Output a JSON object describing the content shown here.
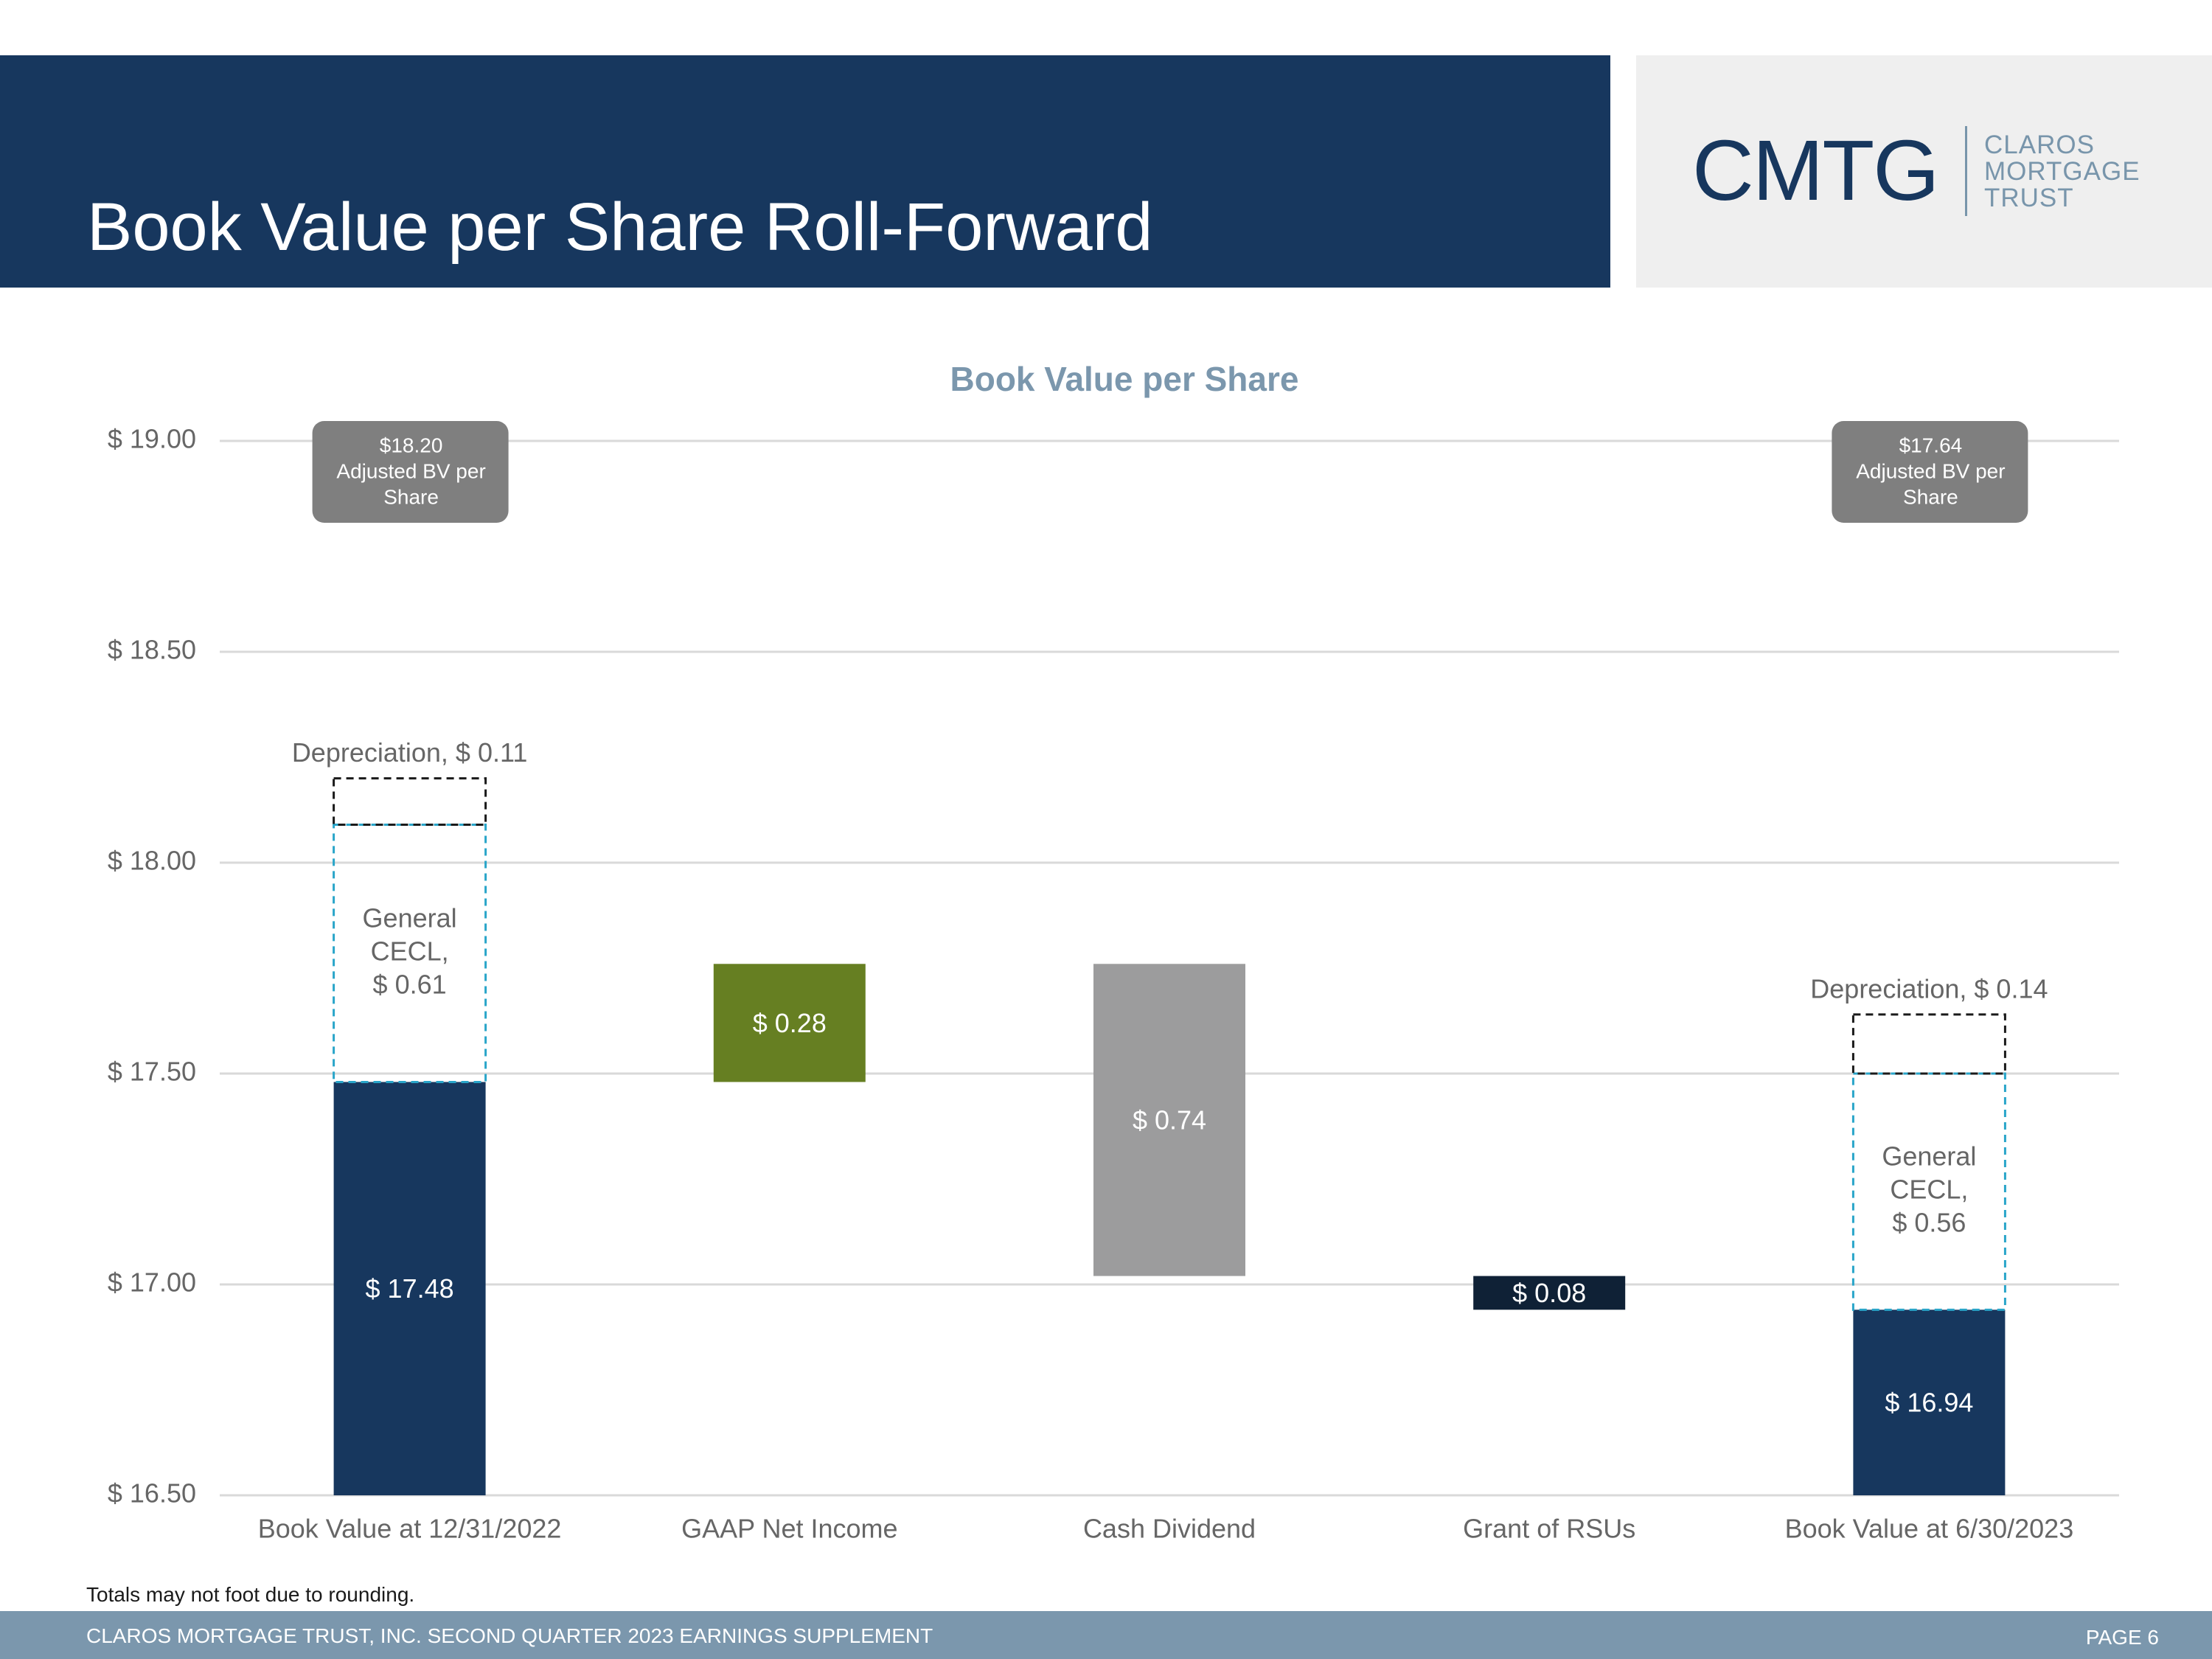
{
  "header": {
    "title": "Book Value per Share Roll-Forward"
  },
  "logo": {
    "mark": "CMTG",
    "words": [
      "CLAROS",
      "MORTGAGE",
      "TRUST"
    ]
  },
  "colors": {
    "navy": "#17375e",
    "green": "#667f22",
    "gray": "#9c9c9d",
    "dark": "#0f2136",
    "cecl_outline": "#29a5c9",
    "dep_outline": "#1a1a1a",
    "callout": "#7f7f7f",
    "title": "#7b97ad"
  },
  "chart_data": {
    "type": "bar",
    "subtype": "waterfall",
    "title": "Book Value per Share",
    "ylim": [
      16.5,
      19.0
    ],
    "yticks": [
      16.5,
      17.0,
      17.5,
      18.0,
      18.5,
      19.0
    ],
    "ytick_labels": [
      "$ 16.50",
      "$ 17.00",
      "$ 17.50",
      "$ 18.00",
      "$ 18.50",
      "$ 19.00"
    ],
    "grid": true,
    "categories": [
      "Book Value at 12/31/2022",
      "GAAP Net Income",
      "Cash Dividend",
      "Grant of RSUs",
      "Book Value at 6/30/2023"
    ],
    "bars": [
      {
        "category": "Book Value at 12/31/2022",
        "kind": "total",
        "start": 16.5,
        "end": 17.48,
        "label": "$ 17.48",
        "color": "#17375e"
      },
      {
        "category": "GAAP Net Income",
        "kind": "increase",
        "start": 17.48,
        "end": 17.76,
        "label": "$ 0.28",
        "color": "#667f22"
      },
      {
        "category": "Cash Dividend",
        "kind": "decrease",
        "start": 17.76,
        "end": 17.02,
        "label": "$ 0.74",
        "color": "#9c9c9d"
      },
      {
        "category": "Grant of RSUs",
        "kind": "decrease",
        "start": 17.02,
        "end": 16.94,
        "label": "$ 0.08",
        "color": "#0f2136"
      },
      {
        "category": "Book Value at 6/30/2023",
        "kind": "total",
        "start": 16.5,
        "end": 16.94,
        "label": "$ 16.94",
        "color": "#17375e"
      }
    ],
    "stacked_adjustments": [
      {
        "category": "Book Value at 12/31/2022",
        "cecl": {
          "start": 17.48,
          "end": 18.09,
          "label": [
            "General",
            "CECL,",
            "$ 0.61"
          ]
        },
        "depreciation": {
          "start": 18.09,
          "end": 18.2,
          "label": "Depreciation, $ 0.11"
        }
      },
      {
        "category": "Book Value at 6/30/2023",
        "cecl": {
          "start": 16.94,
          "end": 17.5,
          "label": [
            "General",
            "CECL,",
            "$ 0.56"
          ]
        },
        "depreciation": {
          "start": 17.5,
          "end": 17.64,
          "label": "Depreciation, $ 0.14"
        }
      }
    ],
    "callouts": [
      {
        "category": "Book Value at 12/31/2022",
        "lines": [
          "$18.20",
          "Adjusted BV per",
          "Share"
        ]
      },
      {
        "category": "Book Value at 6/30/2023",
        "lines": [
          "$17.64",
          "Adjusted BV per",
          "Share"
        ]
      }
    ]
  },
  "footnote": "Totals may not foot due to rounding.",
  "footer": {
    "text": "CLAROS MORTGAGE TRUST, INC. SECOND QUARTER 2023 EARNINGS SUPPLEMENT",
    "page": "PAGE 6"
  }
}
